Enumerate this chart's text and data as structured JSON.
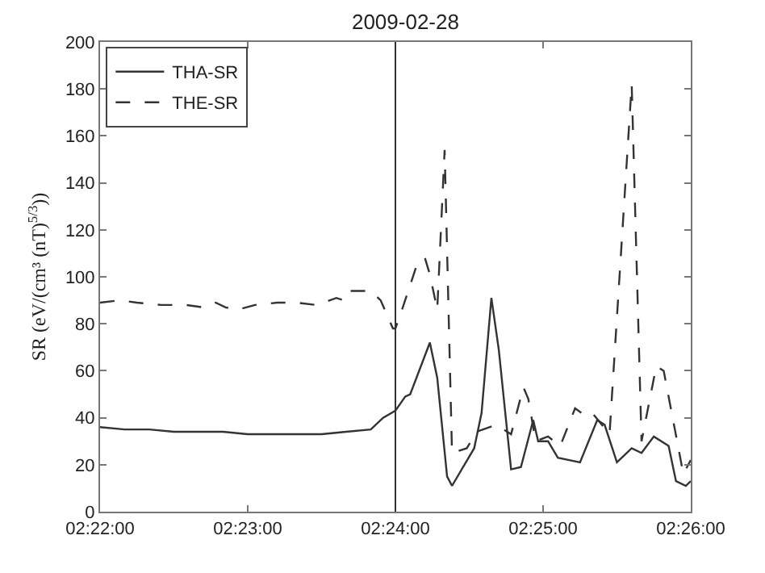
{
  "chart_data": {
    "type": "line",
    "title": "2009-02-28",
    "ylabel": "SR (eV/(cm³ (nT)$^{5/3}$))",
    "xlim": [
      "2009-02-28T02:22:00",
      "2009-02-28T02:26:00"
    ],
    "xticks": [
      {
        "value": "2009-02-28T02:22:00",
        "label": "02:22:00"
      },
      {
        "value": "2009-02-28T02:23:00",
        "label": "02:23:00"
      },
      {
        "value": "2009-02-28T02:24:00",
        "label": "02:24:00"
      },
      {
        "value": "2009-02-28T02:25:00",
        "label": "02:25:00"
      },
      {
        "value": "2009-02-28T02:26:00",
        "label": "02:26:00"
      }
    ],
    "ylim": [
      0,
      200
    ],
    "yticks": [
      0,
      20,
      40,
      60,
      80,
      100,
      120,
      140,
      160,
      180,
      200
    ],
    "grid": false,
    "legend": "top left",
    "marker": "none",
    "ref_lines": [
      {
        "axis": "x",
        "value": "2009-02-28T02:24:00",
        "color": "#333333",
        "line_style": "solid"
      }
    ],
    "series": [
      {
        "name": "THA-SR",
        "color": "#333333",
        "line_style": "solid",
        "x": [
          "2009-02-28T02:22:00",
          "2009-02-28T02:22:10",
          "2009-02-28T02:22:20",
          "2009-02-28T02:22:30",
          "2009-02-28T02:22:40",
          "2009-02-28T02:22:50",
          "2009-02-28T02:23:00",
          "2009-02-28T02:23:10",
          "2009-02-28T02:23:20",
          "2009-02-28T02:23:30",
          "2009-02-28T02:23:40",
          "2009-02-28T02:23:50",
          "2009-02-28T02:23:55",
          "2009-02-28T02:24:00",
          "2009-02-28T02:24:04",
          "2009-02-28T02:24:06",
          "2009-02-28T02:24:14",
          "2009-02-28T02:24:17",
          "2009-02-28T02:24:21",
          "2009-02-28T02:24:23",
          "2009-02-28T02:24:32",
          "2009-02-28T02:24:35",
          "2009-02-28T02:24:39",
          "2009-02-28T02:24:42",
          "2009-02-28T02:24:47",
          "2009-02-28T02:24:51",
          "2009-02-28T02:24:56",
          "2009-02-28T02:24:58",
          "2009-02-28T02:25:02",
          "2009-02-28T02:25:06",
          "2009-02-28T02:25:15",
          "2009-02-28T02:25:22",
          "2009-02-28T02:25:25",
          "2009-02-28T02:25:30",
          "2009-02-28T02:25:36",
          "2009-02-28T02:25:40",
          "2009-02-28T02:25:45",
          "2009-02-28T02:25:51",
          "2009-02-28T02:25:54",
          "2009-02-28T02:25:58",
          "2009-02-28T02:26:00"
        ],
        "values": [
          36,
          35,
          35,
          34,
          34,
          34,
          33,
          33,
          33,
          33,
          34,
          35,
          40,
          43,
          49,
          50,
          72,
          57,
          15,
          11,
          27,
          42,
          91,
          69,
          18,
          19,
          39,
          30,
          30,
          23,
          21,
          39,
          37,
          21,
          27,
          25,
          32,
          28,
          13,
          11,
          13
        ]
      },
      {
        "name": "THE-SR",
        "color": "#333333",
        "line_style": "dashed",
        "x": [
          "2009-02-28T02:22:00",
          "2009-02-28T02:22:08",
          "2009-02-28T02:22:15",
          "2009-02-28T02:22:25",
          "2009-02-28T02:22:35",
          "2009-02-28T02:22:42",
          "2009-02-28T02:22:47",
          "2009-02-28T02:22:51",
          "2009-02-28T02:22:56",
          "2009-02-28T02:23:03",
          "2009-02-28T02:23:12",
          "2009-02-28T02:23:20",
          "2009-02-28T02:23:28",
          "2009-02-28T02:23:36",
          "2009-02-28T02:23:39",
          "2009-02-28T02:23:41",
          "2009-02-28T02:23:50",
          "2009-02-28T02:23:54",
          "2009-02-28T02:23:59",
          "2009-02-28T02:24:00",
          "2009-02-28T02:24:03",
          "2009-02-28T02:24:09",
          "2009-02-28T02:24:12",
          "2009-02-28T02:24:14",
          "2009-02-28T02:24:17",
          "2009-02-28T02:24:20",
          "2009-02-28T02:24:23",
          "2009-02-28T02:24:29",
          "2009-02-28T02:24:33",
          "2009-02-28T02:24:41",
          "2009-02-28T02:24:47",
          "2009-02-28T02:24:52",
          "2009-02-28T02:24:54",
          "2009-02-28T02:24:57",
          "2009-02-28T02:25:02",
          "2009-02-28T02:25:07",
          "2009-02-28T02:25:13",
          "2009-02-28T02:25:17",
          "2009-02-28T02:25:20",
          "2009-02-28T02:25:27",
          "2009-02-28T02:25:36",
          "2009-02-28T02:25:40",
          "2009-02-28T02:25:46",
          "2009-02-28T02:25:49",
          "2009-02-28T02:25:57",
          "2009-02-28T02:26:00"
        ],
        "values": [
          89,
          90,
          89,
          88,
          88,
          87,
          89,
          87,
          86,
          88,
          89,
          89,
          88,
          91,
          90,
          94,
          94,
          90,
          78,
          78,
          87,
          106,
          108,
          101,
          86,
          154,
          25,
          27,
          34,
          37,
          33,
          53,
          48,
          30,
          32,
          28,
          44,
          41,
          42,
          33,
          182,
          30,
          62,
          60,
          16,
          22
        ]
      }
    ]
  }
}
